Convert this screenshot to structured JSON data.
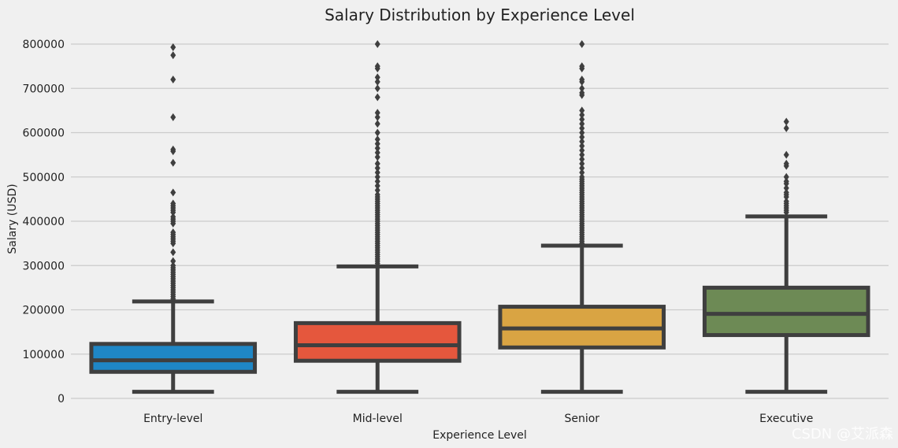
{
  "chart_data": {
    "type": "box",
    "title": "Salary Distribution by Experience Level",
    "xlabel": "Experience Level",
    "ylabel": "Salary (USD)",
    "ylim": [
      0,
      820000
    ],
    "yticks": [
      0,
      100000,
      200000,
      300000,
      400000,
      500000,
      600000,
      700000,
      800000
    ],
    "ytick_labels": [
      "0",
      "100000",
      "200000",
      "300000",
      "400000",
      "500000",
      "600000",
      "700000",
      "800000"
    ],
    "grid": "horizontal",
    "categories": [
      "Entry-level",
      "Mid-level",
      "Senior",
      "Executive"
    ],
    "boxes": [
      {
        "category": "Entry-level",
        "color": "#1f87c6",
        "whisker_low": 15000,
        "q1": 60000,
        "median": 86000,
        "q3": 123000,
        "whisker_high": 219000,
        "outliers": [
          225000,
          230000,
          235000,
          240000,
          245000,
          250000,
          255000,
          260000,
          265000,
          270000,
          275000,
          280000,
          285000,
          290000,
          295000,
          300000,
          310000,
          330000,
          350000,
          355000,
          360000,
          365000,
          370000,
          375000,
          395000,
          400000,
          405000,
          410000,
          420000,
          425000,
          430000,
          435000,
          440000,
          465000,
          532000,
          558000,
          562000,
          635000,
          720000,
          775000,
          793000
        ]
      },
      {
        "category": "Mid-level",
        "color": "#e5573d",
        "whisker_low": 15000,
        "q1": 85000,
        "median": 120000,
        "q3": 170000,
        "whisker_high": 298000,
        "outliers": [
          305000,
          310000,
          315000,
          320000,
          325000,
          330000,
          335000,
          340000,
          345000,
          350000,
          355000,
          360000,
          365000,
          370000,
          375000,
          380000,
          385000,
          390000,
          395000,
          400000,
          405000,
          410000,
          415000,
          420000,
          425000,
          430000,
          435000,
          440000,
          445000,
          450000,
          455000,
          460000,
          470000,
          480000,
          490000,
          500000,
          510000,
          520000,
          530000,
          545000,
          555000,
          565000,
          575000,
          585000,
          600000,
          620000,
          635000,
          645000,
          680000,
          700000,
          715000,
          725000,
          745000,
          750000,
          800000
        ]
      },
      {
        "category": "Senior",
        "color": "#d9a443",
        "whisker_low": 15000,
        "q1": 115000,
        "median": 158000,
        "q3": 207000,
        "whisker_high": 345000,
        "outliers": [
          350000,
          355000,
          360000,
          365000,
          370000,
          375000,
          380000,
          385000,
          390000,
          395000,
          400000,
          405000,
          410000,
          415000,
          420000,
          425000,
          430000,
          435000,
          440000,
          445000,
          450000,
          455000,
          460000,
          465000,
          470000,
          475000,
          480000,
          485000,
          490000,
          495000,
          500000,
          510000,
          520000,
          530000,
          540000,
          550000,
          560000,
          570000,
          580000,
          590000,
          600000,
          610000,
          620000,
          630000,
          640000,
          650000,
          685000,
          690000,
          700000,
          715000,
          720000,
          745000,
          750000,
          800000
        ]
      },
      {
        "category": "Executive",
        "color": "#6d8a55",
        "whisker_low": 15000,
        "q1": 143000,
        "median": 191000,
        "q3": 250000,
        "whisker_high": 411000,
        "outliers": [
          420000,
          425000,
          430000,
          435000,
          440000,
          445000,
          455000,
          460000,
          465000,
          475000,
          485000,
          490000,
          500000,
          525000,
          530000,
          550000,
          610000,
          625000
        ]
      }
    ]
  },
  "watermark": "CSDN @艾派森"
}
